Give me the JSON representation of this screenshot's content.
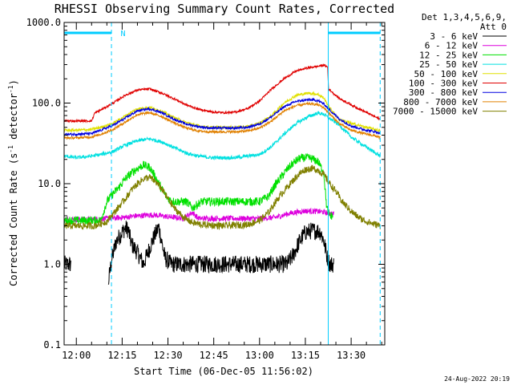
{
  "chart_data": {
    "type": "line",
    "title": "RHESSI Observing Summary Count Rates, Corrected",
    "xlabel": "Start Time (06-Dec-05 11:56:02)",
    "ylabel_main": "Corrected Count Rate (s",
    "ylabel_sup1": "-1",
    "ylabel_mid": " detector",
    "ylabel_sup2": "-1",
    "ylabel_end": ")",
    "y_scale": "log",
    "ylim": [
      0.1,
      1000
    ],
    "y_ticks": [
      "1000.0",
      "100.0",
      "10.0",
      "1.0",
      "0.1"
    ],
    "x_ticks": [
      "12:00",
      "12:15",
      "12:30",
      "12:45",
      "13:00",
      "13:15",
      "13:30"
    ],
    "x_tick_minutes": [
      240,
      255,
      270,
      285,
      300,
      315,
      330
    ],
    "xlim_minutes": [
      236,
      341
    ],
    "legend_header": [
      "Det 1,3,4,5,6,9,",
      "Att 0"
    ],
    "night_marker": "N",
    "night_marker_minute": 254.5,
    "night_intervals_minutes": [
      [
        236,
        251.5
      ],
      [
        322.5,
        339.5
      ]
    ],
    "vlines_solid_minutes": [
      236,
      322.5
    ],
    "vlines_dashed_minutes": [
      251.5,
      339.5
    ],
    "series": [
      {
        "name": "3 - 6 keV",
        "color": "#000000",
        "x": [
          236,
          237,
          238,
          250.5,
          251.5,
          253,
          255,
          256,
          257,
          258,
          260,
          262,
          265,
          267,
          269,
          271,
          273,
          275,
          280,
          290,
          300,
          305,
          307,
          309,
          311,
          313,
          315,
          317,
          319,
          320,
          321,
          322,
          323,
          324,
          324.3
        ],
        "y": [
          1.0,
          1.0,
          1.0,
          0.6,
          1.1,
          1.9,
          2.5,
          2.8,
          2.7,
          1.8,
          1.4,
          1.0,
          2.0,
          2.9,
          1.2,
          1.0,
          1.0,
          1.0,
          1.0,
          1.0,
          1.0,
          1.0,
          1.0,
          1.0,
          1.3,
          1.9,
          2.5,
          2.6,
          2.6,
          2.5,
          2.0,
          1.3,
          1.0,
          1.0,
          1.0
        ],
        "noise": 0.25,
        "gaps": [
          [
            238.2,
            250.4
          ]
        ]
      },
      {
        "name": "6 - 12 keV",
        "color": "#dd00dd",
        "x": [
          236,
          245,
          250,
          255,
          260,
          265,
          270,
          275,
          278,
          280,
          300,
          305,
          310,
          315,
          320,
          324.3
        ],
        "y": [
          3.6,
          3.6,
          3.7,
          3.8,
          4.0,
          4.1,
          3.9,
          3.7,
          4.4,
          3.7,
          3.7,
          3.8,
          4.3,
          4.6,
          4.5,
          4.2
        ],
        "noise": 0.08
      },
      {
        "name": "12 - 25 keV",
        "color": "#00e000",
        "x": [
          236,
          248,
          250,
          252,
          254,
          256,
          258,
          260,
          262,
          264,
          266,
          268,
          270,
          272,
          274,
          276,
          278,
          281,
          300,
          303,
          305,
          307,
          309,
          311,
          313,
          315,
          317,
          319,
          321,
          322,
          323,
          324
        ],
        "y": [
          3.5,
          3.5,
          6.0,
          7.5,
          9.0,
          11.5,
          13.5,
          15.5,
          17.0,
          16.0,
          12.0,
          8.5,
          6.5,
          6.0,
          6.0,
          6.0,
          5.0,
          6.0,
          6.0,
          7.0,
          9.5,
          12.0,
          15.0,
          18.0,
          20.5,
          21.0,
          20.5,
          19.0,
          14.0,
          5.0,
          4.0,
          4.0
        ],
        "noise": 0.12
      },
      {
        "name": "25 - 50 keV",
        "color": "#00e0e0",
        "x": [
          236,
          240,
          245,
          248,
          252,
          256,
          260,
          264,
          268,
          272,
          276,
          280,
          284,
          288,
          292,
          296,
          300,
          304,
          308,
          312,
          316,
          319,
          321,
          323,
          326,
          330,
          334,
          338,
          339.5
        ],
        "y": [
          22,
          21,
          22,
          23,
          25,
          30,
          34,
          36,
          33,
          28,
          24,
          22,
          21,
          21,
          21,
          22,
          23,
          29,
          41,
          56,
          68,
          75,
          73,
          64,
          54,
          38,
          30,
          24,
          22
        ],
        "noise": 0.05
      },
      {
        "name": "50 - 100 keV",
        "color": "#e0e000",
        "x": [
          236,
          240,
          245,
          248,
          252,
          256,
          260,
          264,
          268,
          272,
          276,
          280,
          284,
          288,
          292,
          296,
          300,
          304,
          308,
          312,
          316,
          319,
          321,
          323,
          326,
          330,
          334,
          338,
          339.5
        ],
        "y": [
          46,
          46,
          47,
          50,
          56,
          69,
          85,
          88,
          79,
          66,
          57,
          52,
          50,
          50,
          50,
          51,
          56,
          70,
          100,
          125,
          133,
          129,
          116,
          87,
          63,
          56,
          51,
          47,
          45
        ],
        "noise": 0.04
      },
      {
        "name": "100 - 300 keV",
        "color": "#e00000",
        "x": [
          236,
          240,
          245,
          246,
          248,
          252,
          256,
          260,
          264,
          268,
          272,
          276,
          280,
          284,
          288,
          292,
          296,
          300,
          304,
          308,
          312,
          316,
          319,
          321,
          322.3,
          322.6,
          326,
          330,
          334,
          338,
          339.5
        ],
        "y": [
          60,
          60,
          60,
          75,
          82,
          100,
          125,
          145,
          150,
          133,
          113,
          95,
          84,
          78,
          76,
          77,
          85,
          106,
          150,
          200,
          250,
          275,
          285,
          295,
          280,
          150,
          115,
          95,
          80,
          67,
          63
        ],
        "noise": 0.03
      },
      {
        "name": "300 - 800 keV",
        "color": "#0000e0",
        "x": [
          236,
          240,
          245,
          248,
          252,
          256,
          260,
          264,
          268,
          272,
          276,
          280,
          284,
          288,
          292,
          296,
          300,
          304,
          308,
          312,
          316,
          319,
          321,
          323,
          326,
          330,
          334,
          338,
          339.5
        ],
        "y": [
          41,
          41,
          42,
          46,
          53,
          65,
          80,
          85,
          76,
          63,
          55,
          51,
          49,
          49,
          49,
          50,
          55,
          68,
          90,
          105,
          110,
          108,
          98,
          82,
          64,
          52,
          47,
          44,
          42
        ],
        "noise": 0.035
      },
      {
        "name": "800 - 7000 keV",
        "color": "#e08000",
        "x": [
          236,
          240,
          245,
          248,
          252,
          256,
          260,
          264,
          268,
          272,
          276,
          280,
          284,
          288,
          292,
          296,
          300,
          304,
          308,
          312,
          316,
          319,
          321,
          323,
          326,
          330,
          334,
          338,
          339.5
        ],
        "y": [
          37,
          37,
          38,
          41,
          47,
          58,
          72,
          76,
          68,
          57,
          49,
          45,
          44,
          44,
          44,
          45,
          49,
          60,
          80,
          93,
          98,
          96,
          88,
          73,
          56,
          46,
          42,
          39,
          37
        ],
        "noise": 0.035
      },
      {
        "name": "7000 - 15000 keV",
        "color": "#808000",
        "x": [
          236,
          246,
          250,
          252,
          254,
          256,
          258,
          260,
          262,
          264,
          266,
          268,
          270,
          272,
          274,
          276,
          278,
          281,
          288,
          296,
          300,
          303,
          305,
          307,
          309,
          311,
          313,
          315,
          317,
          319,
          321,
          323,
          325,
          327,
          329,
          331,
          333,
          335,
          337,
          339.5
        ],
        "y": [
          3.0,
          3.0,
          3.4,
          4.2,
          5.2,
          6.5,
          8.3,
          10.0,
          11.5,
          12.0,
          10.5,
          8.6,
          6.5,
          5.0,
          4.2,
          3.6,
          3.3,
          3.1,
          3.0,
          3.1,
          3.5,
          4.4,
          5.8,
          7.3,
          9.0,
          11.0,
          13.2,
          15.0,
          15.5,
          14.8,
          13.0,
          10.0,
          8.0,
          6.0,
          5.0,
          4.2,
          3.7,
          3.4,
          3.2,
          3.0
        ],
        "noise": 0.1
      }
    ]
  },
  "footer_date": "24-Aug-2022 20:19"
}
